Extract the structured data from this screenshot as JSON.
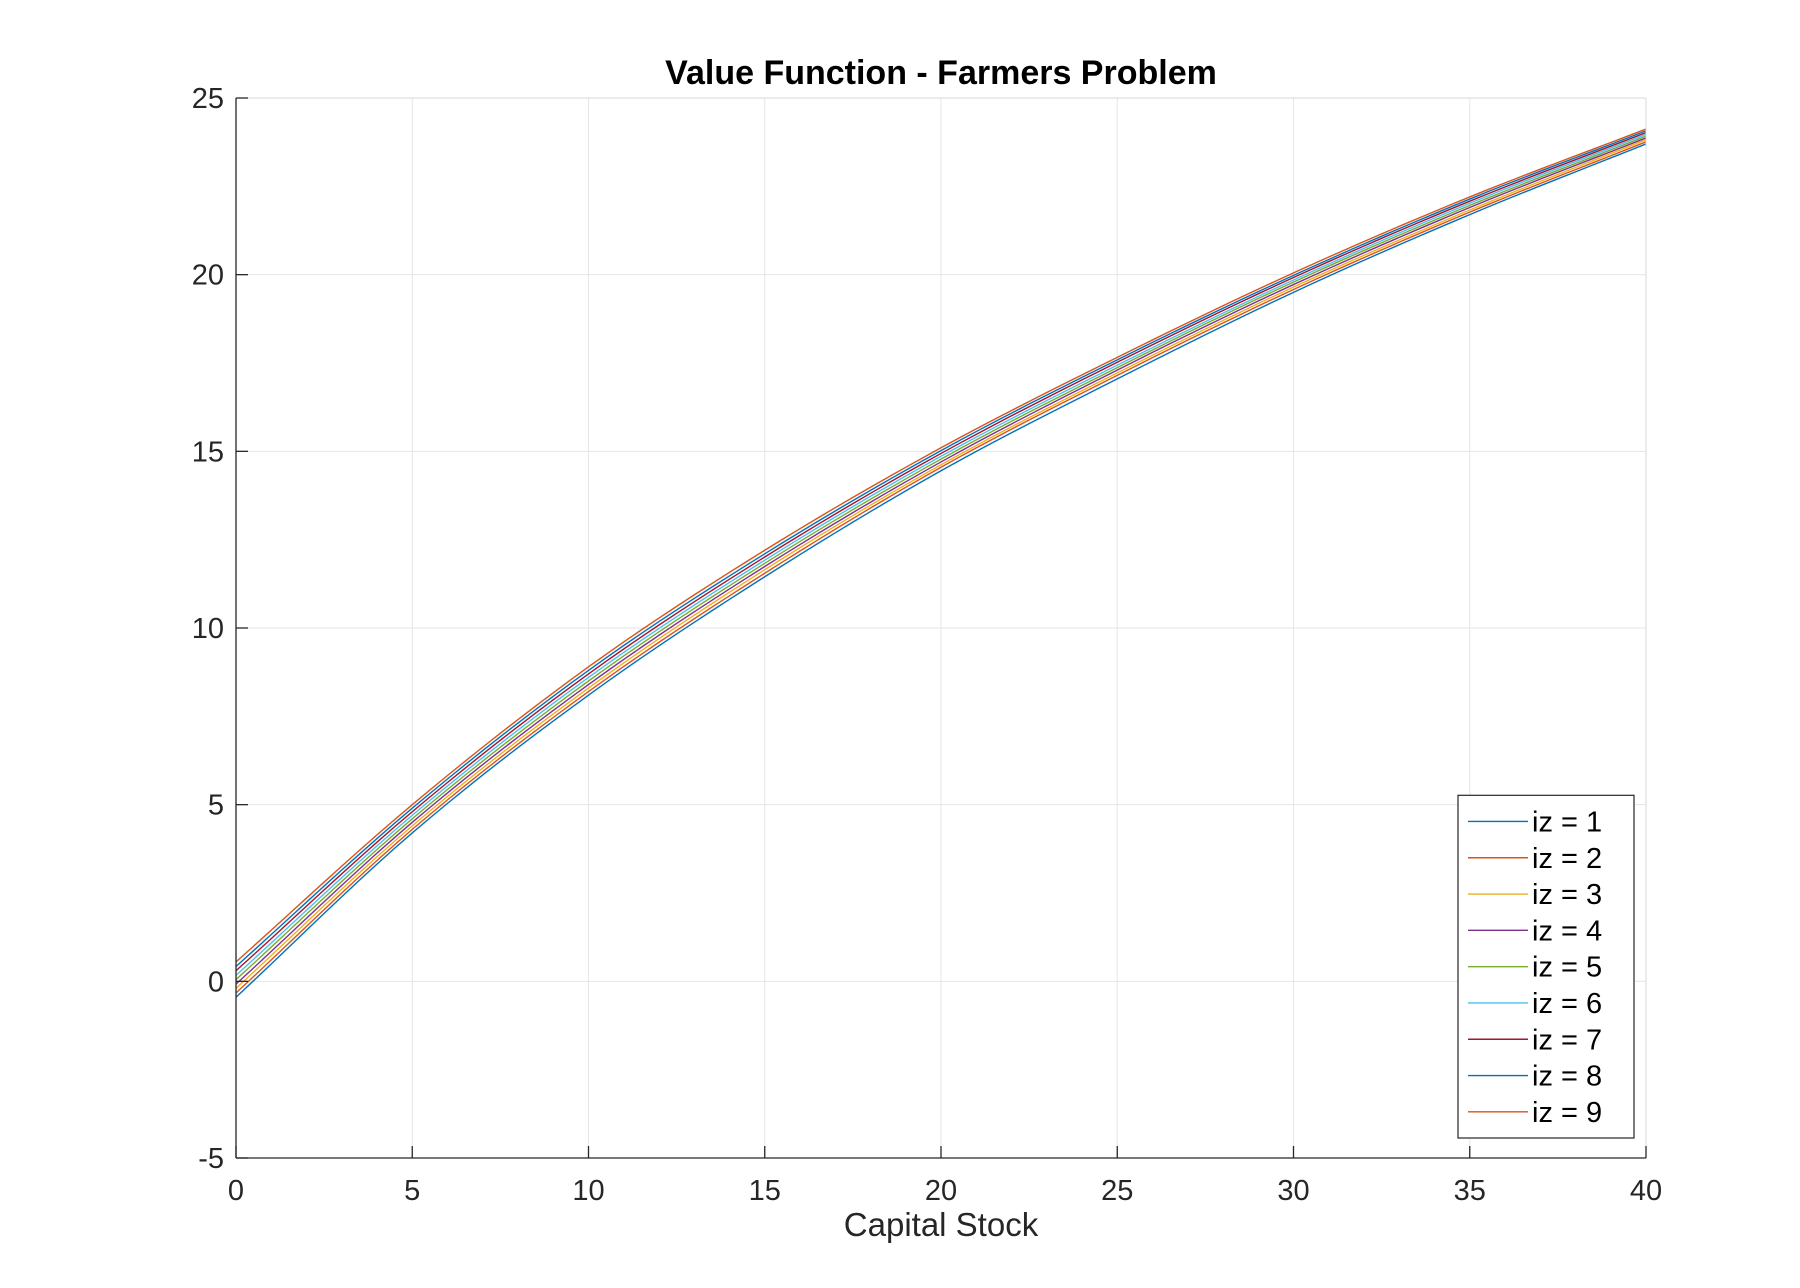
{
  "chart_data": {
    "type": "line",
    "title": "Value Function - Farmers Problem",
    "xlabel": "Capital Stock",
    "ylabel": "",
    "xlim": [
      0,
      40
    ],
    "ylim": [
      -5,
      25
    ],
    "xticks": [
      0,
      5,
      10,
      15,
      20,
      25,
      30,
      35,
      40
    ],
    "yticks": [
      -5,
      0,
      5,
      10,
      15,
      20,
      25
    ],
    "grid": true,
    "legend_location": "bottom-right",
    "x": [
      0,
      5,
      10,
      15,
      20,
      25,
      30,
      35,
      40
    ],
    "series": [
      {
        "name": "iz = 1",
        "color": "#0072BD",
        "values": [
          -0.45,
          4.2,
          8.1,
          11.45,
          14.45,
          17.05,
          19.5,
          21.7,
          23.7
        ]
      },
      {
        "name": "iz = 2",
        "color": "#D95319",
        "values": [
          -0.33,
          4.3,
          8.2,
          11.55,
          14.55,
          17.15,
          19.58,
          21.77,
          23.76
        ]
      },
      {
        "name": "iz = 3",
        "color": "#EDB120",
        "values": [
          -0.2,
          4.4,
          8.3,
          11.65,
          14.62,
          17.22,
          19.65,
          21.83,
          23.82
        ]
      },
      {
        "name": "iz = 4",
        "color": "#7E2F8E",
        "values": [
          -0.08,
          4.5,
          8.4,
          11.74,
          14.7,
          17.3,
          19.72,
          21.9,
          23.87
        ]
      },
      {
        "name": "iz = 5",
        "color": "#77AC30",
        "values": [
          0.05,
          4.6,
          8.5,
          11.83,
          14.78,
          17.37,
          19.79,
          21.96,
          23.92
        ]
      },
      {
        "name": "iz = 6",
        "color": "#4DBEEE",
        "values": [
          0.17,
          4.7,
          8.6,
          11.92,
          14.86,
          17.44,
          19.85,
          22.02,
          23.97
        ]
      },
      {
        "name": "iz = 7",
        "color": "#A2142F",
        "values": [
          0.3,
          4.8,
          8.7,
          12.01,
          14.94,
          17.52,
          19.92,
          22.08,
          24.02
        ]
      },
      {
        "name": "iz = 8",
        "color": "#0072BD",
        "values": [
          0.42,
          4.9,
          8.8,
          12.1,
          15.02,
          17.59,
          19.98,
          22.14,
          24.07
        ]
      },
      {
        "name": "iz = 9",
        "color": "#D95319",
        "values": [
          0.55,
          5.0,
          8.9,
          12.2,
          15.1,
          17.66,
          20.05,
          22.2,
          24.12
        ]
      }
    ]
  }
}
